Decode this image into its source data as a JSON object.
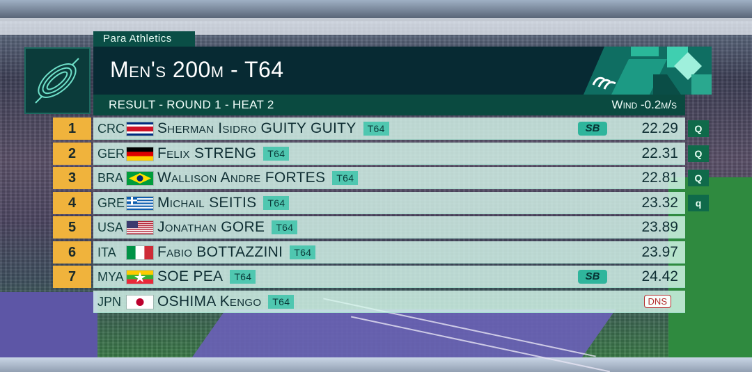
{
  "header": {
    "sport": "Para Athletics",
    "title": "Men's 200m - T64",
    "subtitle": "RESULT - ROUND 1 - HEAT 2",
    "wind": "Wind -0.2m/s"
  },
  "colors": {
    "rank_bg": "#f0b33c",
    "row_bg": "#d6f6ec",
    "title_bg": "#072a33",
    "accent": "#4fc7b0",
    "qualify_bg": "#0f6a4a",
    "dns_border": "#b32a2a"
  },
  "results": [
    {
      "rank": "1",
      "country": "CRC",
      "flag": "flag-costa-rica",
      "name": "Sherman Isidro GUITY GUITY",
      "class": "T64",
      "badge": "SB",
      "time": "22.29",
      "qualifier": "Q"
    },
    {
      "rank": "2",
      "country": "GER",
      "flag": "flag-germany",
      "name": "Felix STRENG",
      "class": "T64",
      "badge": "",
      "time": "22.31",
      "qualifier": "Q"
    },
    {
      "rank": "3",
      "country": "BRA",
      "flag": "flag-brazil",
      "name": "Wallison Andre FORTES",
      "class": "T64",
      "badge": "",
      "time": "22.81",
      "qualifier": "Q"
    },
    {
      "rank": "4",
      "country": "GRE",
      "flag": "flag-greece",
      "name": "Michail SEITIS",
      "class": "T64",
      "badge": "",
      "time": "23.32",
      "qualifier": "q"
    },
    {
      "rank": "5",
      "country": "USA",
      "flag": "flag-usa",
      "name": "Jonathan GORE",
      "class": "T64",
      "badge": "",
      "time": "23.89",
      "qualifier": ""
    },
    {
      "rank": "6",
      "country": "ITA",
      "flag": "flag-italy",
      "name": "Fabio BOTTAZZINI",
      "class": "T64",
      "badge": "",
      "time": "23.97",
      "qualifier": ""
    },
    {
      "rank": "7",
      "country": "MYA",
      "flag": "flag-myanmar",
      "name": "SOE PEA",
      "class": "T64",
      "badge": "SB",
      "time": "24.42",
      "qualifier": ""
    },
    {
      "rank": "",
      "country": "JPN",
      "flag": "flag-japan",
      "name": "OSHIMA Kengo",
      "class": "T64",
      "badge": "",
      "time": "DNS",
      "qualifier": ""
    }
  ]
}
